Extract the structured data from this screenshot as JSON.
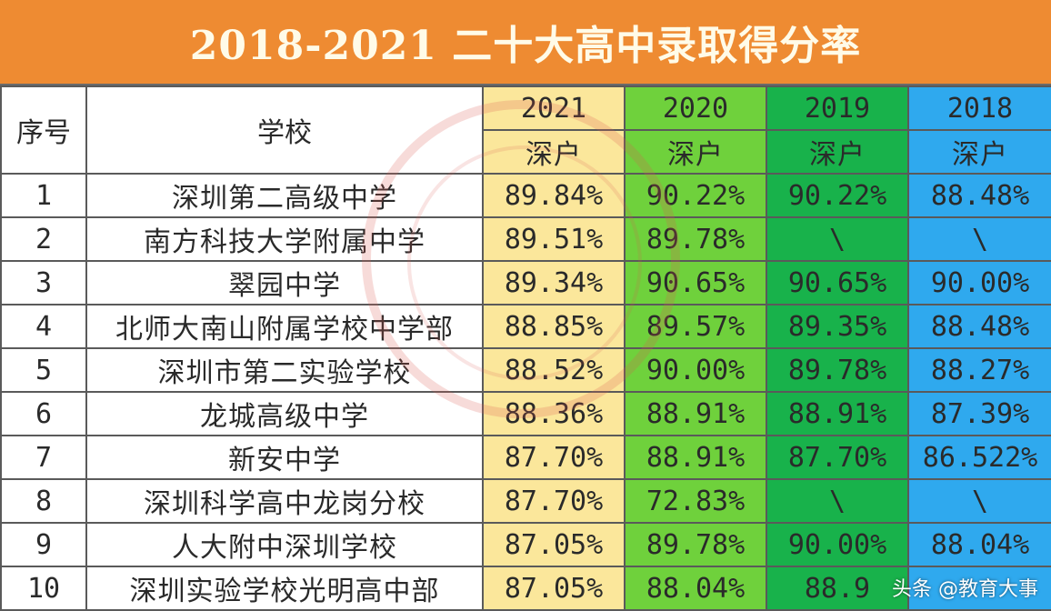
{
  "title": "2018-2021 二十大高中录取得分率",
  "columns": {
    "seq": "序号",
    "school": "学校",
    "years": [
      "2021",
      "2020",
      "2019",
      "2018"
    ],
    "subheader": "深户"
  },
  "rows": [
    {
      "seq": "1",
      "school": "深圳第二高级中学",
      "v2021": "89.84%",
      "v2020": "90.22%",
      "v2019": "90.22%",
      "v2018": "88.48%"
    },
    {
      "seq": "2",
      "school": "南方科技大学附属中学",
      "v2021": "89.51%",
      "v2020": "89.78%",
      "v2019": "\\",
      "v2018": "\\"
    },
    {
      "seq": "3",
      "school": "翠园中学",
      "v2021": "89.34%",
      "v2020": "90.65%",
      "v2019": "90.65%",
      "v2018": "90.00%"
    },
    {
      "seq": "4",
      "school": "北师大南山附属学校中学部",
      "v2021": "88.85%",
      "v2020": "89.57%",
      "v2019": "89.35%",
      "v2018": "88.48%"
    },
    {
      "seq": "5",
      "school": "深圳市第二实验学校",
      "v2021": "88.52%",
      "v2020": "90.00%",
      "v2019": "89.78%",
      "v2018": "88.27%"
    },
    {
      "seq": "6",
      "school": "龙城高级中学",
      "v2021": "88.36%",
      "v2020": "88.91%",
      "v2019": "88.91%",
      "v2018": "87.39%"
    },
    {
      "seq": "7",
      "school": "新安中学",
      "v2021": "87.70%",
      "v2020": "88.91%",
      "v2019": "87.70%",
      "v2018": "86.522%"
    },
    {
      "seq": "8",
      "school": "深圳科学高中龙岗分校",
      "v2021": "87.70%",
      "v2020": "72.83%",
      "v2019": "\\",
      "v2018": "\\"
    },
    {
      "seq": "9",
      "school": "人大附中深圳学校",
      "v2021": "87.05%",
      "v2020": "89.78%",
      "v2019": "90.00%",
      "v2018": "88.04%"
    },
    {
      "seq": "10",
      "school": "深圳实验学校光明高中部",
      "v2021": "87.05%",
      "v2020": "88.04%",
      "v2019": "88.9",
      "v2018": ""
    }
  ],
  "watermark": "头条 @教育大事",
  "colors": {
    "title_bg": "#ee8b32",
    "col2021": "#fbe79b",
    "col2020": "#6fd13c",
    "col2019": "#18b24b",
    "col2018": "#2fa9ee"
  }
}
